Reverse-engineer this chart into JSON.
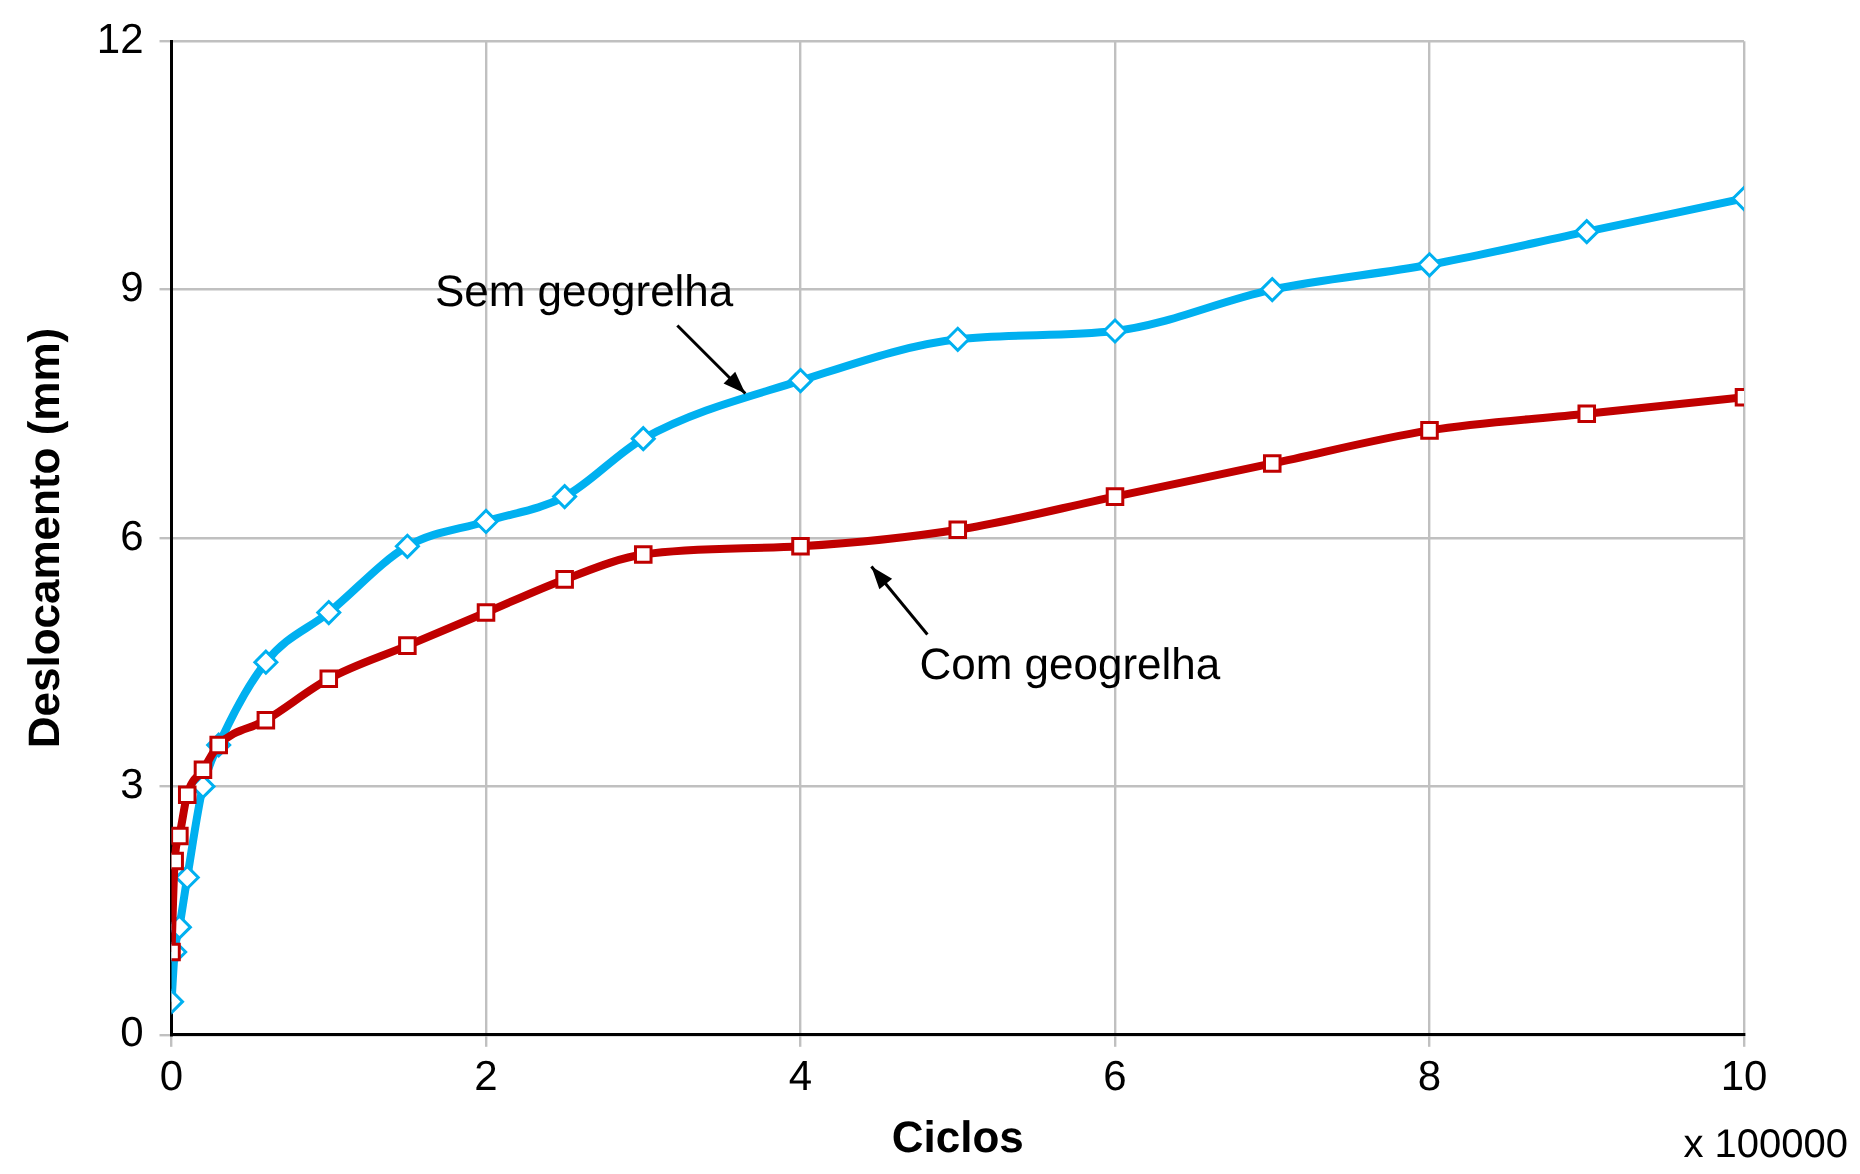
{
  "chart_data": {
    "type": "line",
    "xlabel": "Ciclos",
    "ylabel": "Deslocamento (mm)",
    "xlim": [
      0,
      10
    ],
    "xticks": [
      0,
      2,
      4,
      6,
      8,
      10
    ],
    "ylim": [
      0,
      12
    ],
    "yticks": [
      0,
      3,
      6,
      9,
      12
    ],
    "grid": true,
    "legend": false,
    "line_style": "solid",
    "series": [
      {
        "color": "#00b0f0",
        "marker": "diamond",
        "x": [
          0,
          0.02,
          0.05,
          0.1,
          0.2,
          0.3,
          0.6,
          1,
          1.5,
          2,
          2.5,
          3,
          4,
          5,
          6,
          7,
          8,
          9,
          10
        ],
        "values": [
          0.4,
          1.0,
          1.3,
          1.9,
          3.0,
          3.5,
          4.5,
          5.1,
          5.9,
          6.2,
          6.5,
          7.2,
          7.9,
          8.4,
          8.5,
          9.0,
          9.3,
          9.7,
          10.1
        ]
      },
      {
        "color": "#c00000",
        "marker": "square",
        "x": [
          0,
          0.02,
          0.05,
          0.1,
          0.2,
          0.3,
          0.6,
          1,
          1.5,
          2,
          2.5,
          3,
          4,
          5,
          6,
          7,
          8,
          9,
          10
        ],
        "values": [
          1.0,
          2.1,
          2.4,
          2.9,
          3.2,
          3.5,
          3.8,
          4.3,
          4.7,
          5.1,
          5.5,
          5.8,
          5.9,
          6.1,
          6.5,
          6.9,
          7.3,
          7.5,
          7.7
        ]
      }
    ],
    "annotations": [
      {
        "text": "Sem geogrelha",
        "x": 3.7,
        "y": 7.6
      },
      {
        "text": "Com geogrelha",
        "x": 4.4,
        "y": 5.8
      },
      "x 100000"
    ]
  }
}
